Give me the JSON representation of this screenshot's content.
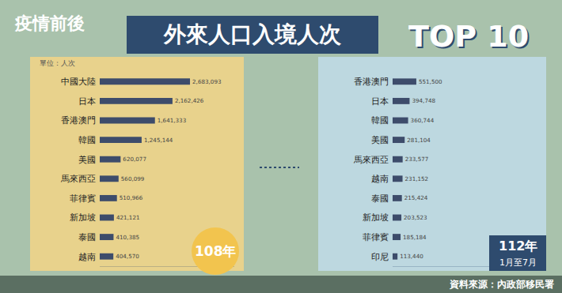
{
  "header": {
    "line1": "疫情前後",
    "main": "外來人口入境人次",
    "badge": "TOP 10"
  },
  "source": "資料來源：內政部移民署",
  "chart_data": [
    {
      "type": "bar",
      "orientation": "horizontal",
      "title": "108年",
      "annotations": [
        "單位：人次"
      ],
      "categories": [
        "中國大陸",
        "日本",
        "香港澳門",
        "韓國",
        "美國",
        "馬來西亞",
        "菲律賓",
        "新加坡",
        "泰國",
        "越南"
      ],
      "values": [
        2683093,
        2162426,
        1641333,
        1245144,
        620077,
        560099,
        510966,
        421121,
        410385,
        404570
      ],
      "value_labels": [
        "2,683,093",
        "2,162,426",
        "1,641,333",
        "1,245,144",
        "620,077",
        "560,099",
        "510,966",
        "421,121",
        "410,385",
        "404,570"
      ],
      "color": "#3d4c6b",
      "xlim": [
        0,
        4000000
      ],
      "data_labels": true,
      "tick_labels": "y",
      "grid": false
    },
    {
      "type": "bar",
      "orientation": "horizontal",
      "title": "112年",
      "subtitle": "1月至7月",
      "categories": [
        "香港澳門",
        "日本",
        "韓國",
        "美國",
        "馬來西亞",
        "越南",
        "泰國",
        "新加坡",
        "菲律賓",
        "印尼"
      ],
      "values": [
        551500,
        394748,
        360744,
        281104,
        233577,
        231152,
        215424,
        203523,
        185184,
        113440
      ],
      "value_labels": [
        "551,500",
        "394,748",
        "360,744",
        "281,104",
        "233,577",
        "231,152",
        "215,424",
        "203,523",
        "185,184",
        "113,440"
      ],
      "color": "#3d4c6b",
      "xlim": [
        0,
        3500000
      ],
      "data_labels": true,
      "tick_labels": "y",
      "grid": false
    }
  ]
}
